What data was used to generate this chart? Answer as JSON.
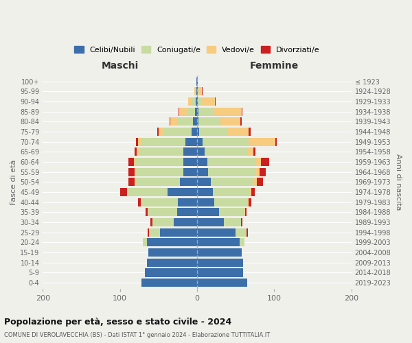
{
  "age_groups": [
    "0-4",
    "5-9",
    "10-14",
    "15-19",
    "20-24",
    "25-29",
    "30-34",
    "35-39",
    "40-44",
    "45-49",
    "50-54",
    "55-59",
    "60-64",
    "65-69",
    "70-74",
    "75-79",
    "80-84",
    "85-89",
    "90-94",
    "95-99",
    "100+"
  ],
  "birth_years": [
    "2019-2023",
    "2014-2018",
    "2009-2013",
    "2004-2008",
    "1999-2003",
    "1994-1998",
    "1989-1993",
    "1984-1988",
    "1979-1983",
    "1974-1978",
    "1969-1973",
    "1964-1968",
    "1959-1963",
    "1954-1958",
    "1949-1953",
    "1944-1948",
    "1939-1943",
    "1934-1938",
    "1929-1933",
    "1924-1928",
    "≤ 1923"
  ],
  "colors": {
    "celibi": "#3c6faa",
    "coniugati": "#c8dba0",
    "vedovi": "#f7cc80",
    "divorziati": "#cc2020"
  },
  "maschi": {
    "celibi": [
      72,
      68,
      65,
      63,
      65,
      48,
      30,
      26,
      25,
      38,
      22,
      18,
      18,
      18,
      15,
      7,
      5,
      3,
      2,
      1,
      1
    ],
    "coniugati": [
      0,
      0,
      0,
      0,
      5,
      14,
      28,
      38,
      48,
      52,
      58,
      62,
      62,
      58,
      58,
      38,
      20,
      10,
      4,
      1,
      0
    ],
    "vedovi": [
      0,
      0,
      0,
      0,
      0,
      0,
      0,
      0,
      0,
      1,
      1,
      1,
      2,
      2,
      4,
      5,
      10,
      10,
      6,
      2,
      0
    ],
    "divorziati": [
      0,
      0,
      0,
      0,
      0,
      2,
      3,
      3,
      4,
      9,
      8,
      8,
      7,
      3,
      2,
      2,
      1,
      1,
      0,
      0,
      0
    ]
  },
  "femmine": {
    "celibi": [
      65,
      60,
      60,
      58,
      55,
      50,
      35,
      28,
      22,
      20,
      18,
      14,
      13,
      10,
      7,
      3,
      2,
      2,
      1,
      1,
      1
    ],
    "coniugati": [
      0,
      0,
      0,
      0,
      6,
      14,
      22,
      33,
      43,
      48,
      55,
      62,
      62,
      55,
      60,
      36,
      28,
      18,
      4,
      1,
      0
    ],
    "vedovi": [
      0,
      0,
      0,
      0,
      0,
      0,
      0,
      1,
      2,
      2,
      4,
      5,
      8,
      8,
      34,
      28,
      26,
      38,
      18,
      4,
      0
    ],
    "divorziati": [
      0,
      0,
      0,
      0,
      0,
      2,
      2,
      2,
      3,
      5,
      8,
      8,
      10,
      3,
      2,
      2,
      2,
      1,
      1,
      1,
      0
    ]
  },
  "title": "Popolazione per età, sesso e stato civile - 2024",
  "subtitle": "COMUNE DI VEROLAVECCHIA (BS) - Dati ISTAT 1° gennaio 2024 - Elaborazione TUTTITALIA.IT",
  "xlabel_left": "Maschi",
  "xlabel_right": "Femmine",
  "ylabel_left": "Fasce di età",
  "ylabel_right": "Anni di nascita",
  "legend_labels": [
    "Celibi/Nubili",
    "Coniugati/e",
    "Vedovi/e",
    "Divorziati/e"
  ],
  "xlim": 200,
  "background": "#f0f0eb",
  "grid_color": "#ffffff"
}
